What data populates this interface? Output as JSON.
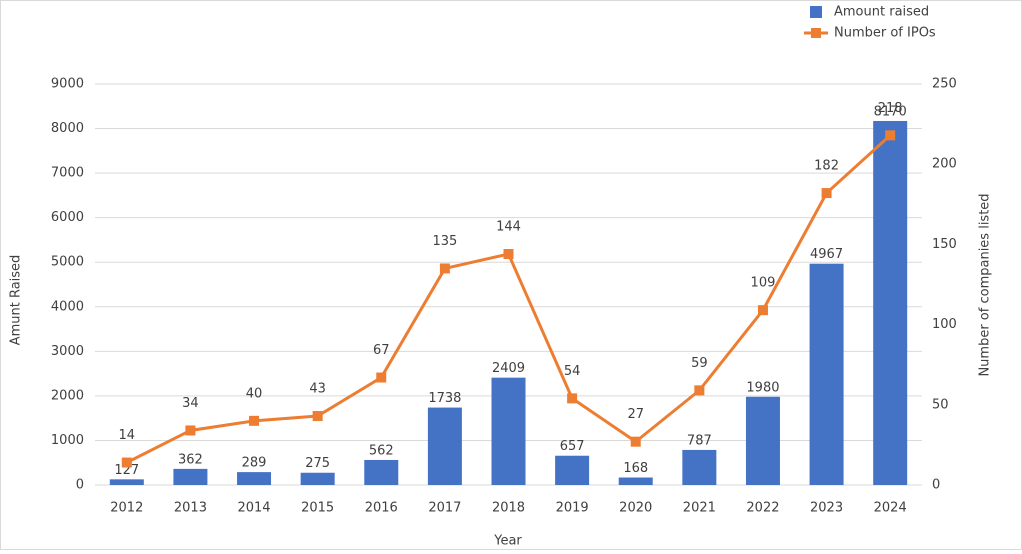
{
  "chart_data": {
    "type": "bar-line",
    "x_label": "Year",
    "y_label": "Amunt Raised",
    "y2_label": "Number of companies listed",
    "categories": [
      "2012",
      "2013",
      "2014",
      "2015",
      "2016",
      "2017",
      "2018",
      "2019",
      "2020",
      "2021",
      "2022",
      "2023",
      "2024"
    ],
    "series": [
      {
        "name": "Amount raised",
        "kind": "bar",
        "color": "#4472c4",
        "values": [
          127,
          362,
          289,
          275,
          562,
          1738,
          2409,
          657,
          168,
          787,
          1980,
          4967,
          8170
        ]
      },
      {
        "name": "Number of IPOs",
        "kind": "line",
        "axis": "y2",
        "color": "#ed7d31",
        "values": [
          14,
          34,
          40,
          43,
          67,
          135,
          144,
          54,
          27,
          59,
          109,
          182,
          218
        ]
      }
    ],
    "ylim": [
      0,
      9000
    ],
    "yticks": [
      0,
      1000,
      2000,
      3000,
      4000,
      5000,
      6000,
      7000,
      8000,
      9000
    ],
    "y2lim": [
      0,
      250
    ],
    "y2ticks": [
      0,
      50,
      100,
      150,
      200,
      250
    ],
    "grid": true,
    "legend": "top-right"
  }
}
